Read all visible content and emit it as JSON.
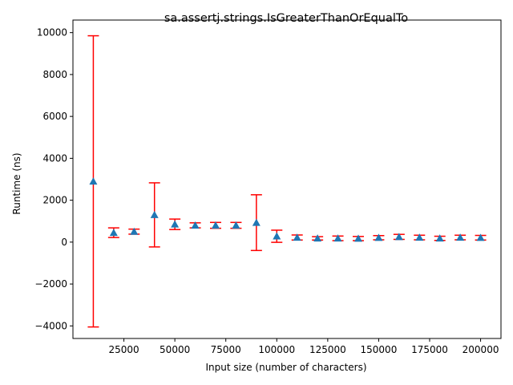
{
  "chart_data": {
    "type": "scatter",
    "title": "sa.assertj.strings.IsGreaterThanOrEqualTo",
    "xlabel": "Input size (number of characters)",
    "ylabel": "Runtime (ns)",
    "xlim": [
      0,
      210000
    ],
    "ylim": [
      -4600,
      10600
    ],
    "xticks": [
      25000,
      50000,
      75000,
      100000,
      125000,
      150000,
      175000,
      200000
    ],
    "yticks": [
      -4000,
      -2000,
      0,
      2000,
      4000,
      6000,
      8000,
      10000
    ],
    "grid": false,
    "marker_color": "#1f77b4",
    "errorbar_color": "#ff0000",
    "points": [
      {
        "x": 10000,
        "y": 2900,
        "err": 6950
      },
      {
        "x": 20000,
        "y": 450,
        "err": 230
      },
      {
        "x": 30000,
        "y": 500,
        "err": 120
      },
      {
        "x": 40000,
        "y": 1300,
        "err": 1530
      },
      {
        "x": 50000,
        "y": 850,
        "err": 250
      },
      {
        "x": 60000,
        "y": 800,
        "err": 120
      },
      {
        "x": 70000,
        "y": 800,
        "err": 140
      },
      {
        "x": 80000,
        "y": 800,
        "err": 140
      },
      {
        "x": 90000,
        "y": 930,
        "err": 1330
      },
      {
        "x": 100000,
        "y": 280,
        "err": 290
      },
      {
        "x": 110000,
        "y": 220,
        "err": 120
      },
      {
        "x": 120000,
        "y": 180,
        "err": 80
      },
      {
        "x": 130000,
        "y": 180,
        "err": 110
      },
      {
        "x": 140000,
        "y": 170,
        "err": 100
      },
      {
        "x": 150000,
        "y": 210,
        "err": 100
      },
      {
        "x": 160000,
        "y": 250,
        "err": 120
      },
      {
        "x": 170000,
        "y": 220,
        "err": 110
      },
      {
        "x": 180000,
        "y": 180,
        "err": 100
      },
      {
        "x": 190000,
        "y": 220,
        "err": 110
      },
      {
        "x": 200000,
        "y": 210,
        "err": 110
      }
    ]
  }
}
